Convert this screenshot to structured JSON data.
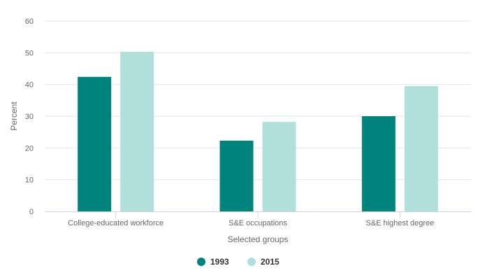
{
  "chart_data": {
    "type": "bar",
    "title": "",
    "xlabel": "Selected groups",
    "ylabel": "Percent",
    "ylim": [
      0,
      60
    ],
    "yticks": [
      0,
      10,
      20,
      30,
      40,
      50,
      60
    ],
    "grid": true,
    "legend_position": "bottom-center",
    "categories": [
      "College-educated workforce",
      "S&E occupations",
      "S&E highest degree"
    ],
    "series": [
      {
        "name": "1993",
        "color": "#00837d",
        "values": [
          42.4,
          22.3,
          30.0
        ]
      },
      {
        "name": "2015",
        "color": "#b1dfdb",
        "values": [
          50.3,
          28.2,
          39.5
        ]
      }
    ]
  }
}
